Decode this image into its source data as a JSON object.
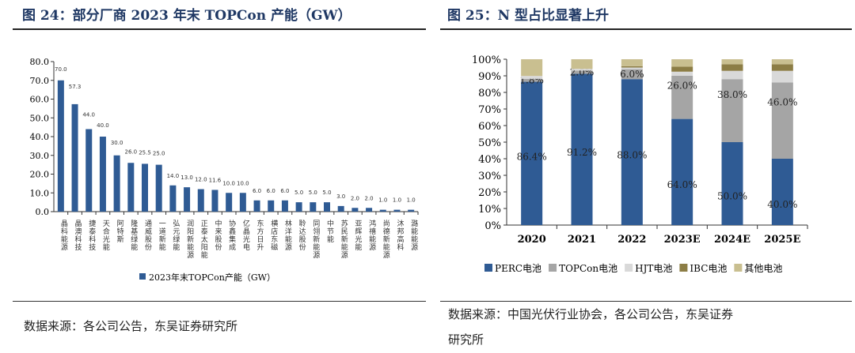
{
  "left": {
    "title": "图 24：部分厂商 2023 年末 TOPCon 产能（GW）",
    "source": "数据来源：各公司公告，东吴证券研究所"
  },
  "right": {
    "title": "图 25：N 型占比显著上升",
    "source_line1": "数据来源：中国光伏行业协会，各公司公告，东吴证券",
    "source_line2": "研究所"
  },
  "chart_data": [
    {
      "type": "bar",
      "ylim": [
        0,
        80
      ],
      "yticks": [
        "0.0",
        "10.0",
        "20.0",
        "30.0",
        "40.0",
        "50.0",
        "60.0",
        "70.0",
        "80.0"
      ],
      "color": "#2f5b94",
      "categories": [
        "晶科能源",
        "晶澳科技",
        "捷泰科技",
        "天合光能",
        "阿特斯",
        "隆基绿能",
        "通威股份",
        "一道新能",
        "弘元绿能",
        "润阳新能源",
        "正泰太阳能",
        "中来股份",
        "协鑫集成",
        "亿晶光电",
        "东方日升",
        "横店东磁",
        "林洋能源",
        "聆达股份",
        "同翎新能源",
        "中节能",
        "苏民新能源",
        "亚辉光能",
        "鸿禧能源",
        "尚德新能源",
        "沐邦高科",
        "潞能能源"
      ],
      "values": [
        70.0,
        57.3,
        44.0,
        40.0,
        30.0,
        26.0,
        25.5,
        25.0,
        14.0,
        13.0,
        12.0,
        11.6,
        10.0,
        10.0,
        6.0,
        6.0,
        6.0,
        5.0,
        5.0,
        5.0,
        3.0,
        2.0,
        2.0,
        1.0,
        1.0,
        1.0
      ],
      "labels": [
        "70.0",
        "57.3",
        "44.0",
        "40.0",
        "30.0",
        "26.0",
        "25.5",
        "25.0",
        "14.0",
        "13.0",
        "12.0",
        "11.6",
        "10.0",
        "10.0",
        "6.0",
        "6.0",
        "6.0",
        "5.0",
        "5.0",
        "5.0",
        "3.0",
        "2.0",
        "2.0",
        "1.0",
        "1.0",
        "1.0"
      ],
      "legend": "2023年末TOPCon产能（GW）",
      "legend_position": "bottom"
    },
    {
      "type": "bar",
      "stacked": true,
      "ylim": [
        0,
        100
      ],
      "yticks": [
        "0%",
        "10%",
        "20%",
        "30%",
        "40%",
        "50%",
        "60%",
        "70%",
        "80%",
        "90%",
        "100%"
      ],
      "categories": [
        "2020",
        "2021",
        "2022",
        "2023E",
        "2024E",
        "2025E"
      ],
      "series": [
        {
          "name": "PERC电池",
          "color": "#2f5b94",
          "values": [
            86.4,
            91.2,
            88.0,
            64.0,
            50.0,
            40.0
          ],
          "labels": [
            "86.4%",
            "91.2%",
            "88.0%",
            "64.0%",
            "50.0%",
            "40.0%"
          ]
        },
        {
          "name": "TOPCon电池",
          "color": "#a5a5a5",
          "values": [
            1.8,
            2.0,
            6.0,
            26.0,
            38.0,
            46.0
          ],
          "labels": [
            "1.8%",
            "2.0%",
            "6.0%",
            "26.0%",
            "38.0%",
            "46.0%"
          ]
        },
        {
          "name": "HJT电池",
          "color": "#d9d9d9",
          "values": [
            1.7,
            1.0,
            1.0,
            2.5,
            5.0,
            7.0
          ]
        },
        {
          "name": "IBC电池",
          "color": "#8c7d45",
          "values": [
            0,
            0,
            0.8,
            3.0,
            4.0,
            4.0
          ]
        },
        {
          "name": "其他电池",
          "color": "#c9bf90",
          "values": [
            10.1,
            5.8,
            4.2,
            4.5,
            3.0,
            3.0
          ]
        }
      ],
      "legend_position": "bottom"
    }
  ]
}
